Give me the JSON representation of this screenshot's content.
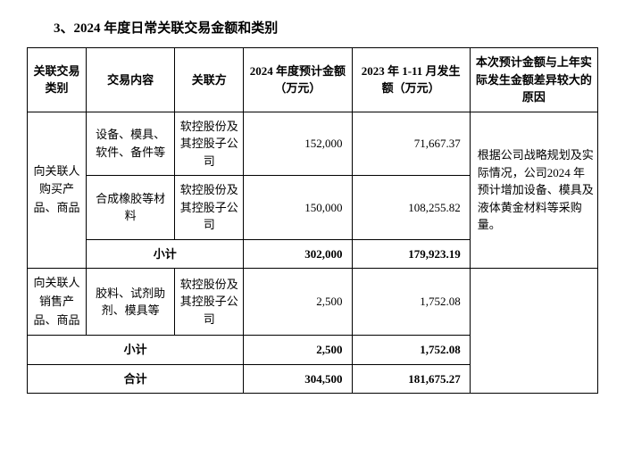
{
  "title": "3、2024 年度日常关联交易金额和类别",
  "headers": {
    "category": "关联交易类别",
    "content": "交易内容",
    "party": "关联方",
    "estimated": "2024 年度预计金额（万元）",
    "actual": "2023 年 1-11 月发生额（万元）",
    "reason": "本次预计金额与上年实际发生金额差异较大的原因"
  },
  "rows": {
    "cat1": "向关联人购买产品、商品",
    "r1_content": "设备、模具、软件、备件等",
    "r1_party": "软控股份及其控股子公司",
    "r1_est": "152,000",
    "r1_act": "71,667.37",
    "r2_content": "合成橡胶等材料",
    "r2_party": "软控股份及其控股子公司",
    "r2_est": "150,000",
    "r2_act": "108,255.82",
    "reason1": "根据公司战略规划及实际情况，公司2024 年预计增加设备、模具及液体黄金材料等采购量。",
    "sub1_label": "小计",
    "sub1_est": "302,000",
    "sub1_act": "179,923.19",
    "cat2": "向关联人销售产品、商品",
    "r3_content": "胶料、试剂助剂、模具等",
    "r3_party": "软控股份及其控股子公司",
    "r3_est": "2,500",
    "r3_act": "1,752.08",
    "sub2_label": "小计",
    "sub2_est": "2,500",
    "sub2_act": "1,752.08",
    "total_label": "合计",
    "total_est": "304,500",
    "total_act": "181,675.27"
  }
}
